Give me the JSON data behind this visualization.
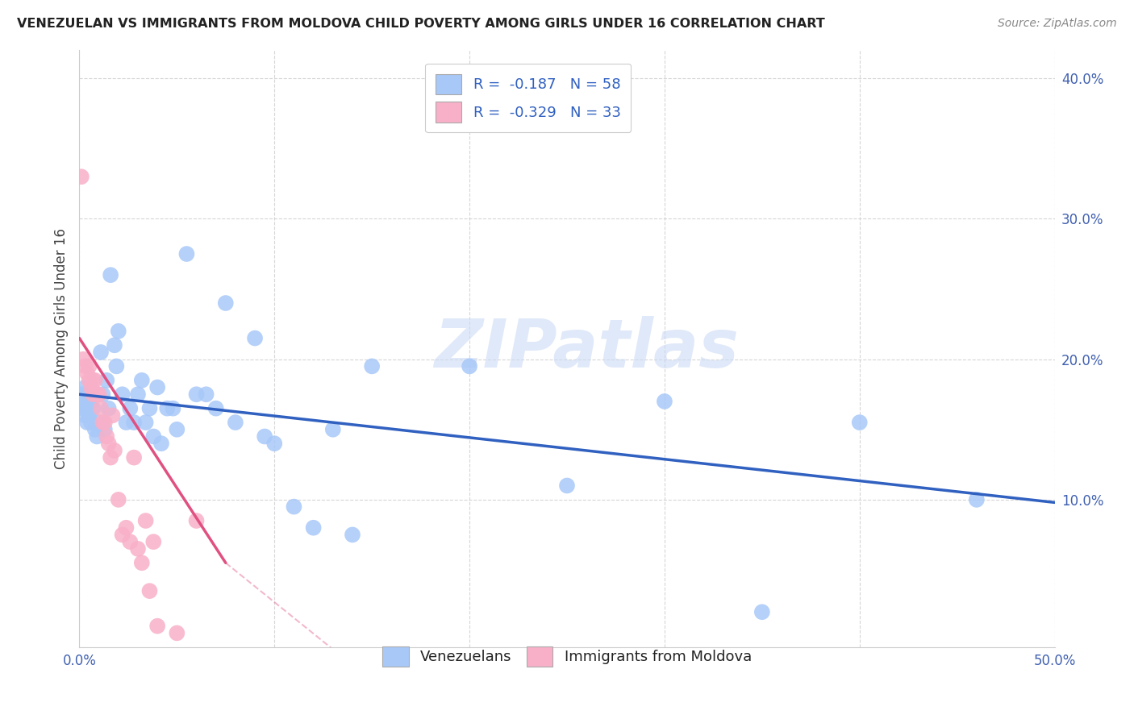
{
  "title": "VENEZUELAN VS IMMIGRANTS FROM MOLDOVA CHILD POVERTY AMONG GIRLS UNDER 16 CORRELATION CHART",
  "source": "Source: ZipAtlas.com",
  "ylabel": "Child Poverty Among Girls Under 16",
  "xlim": [
    0.0,
    0.5
  ],
  "ylim": [
    -0.005,
    0.42
  ],
  "xticks": [
    0.0,
    0.1,
    0.2,
    0.3,
    0.4,
    0.5
  ],
  "yticks": [
    0.1,
    0.2,
    0.3,
    0.4
  ],
  "xtick_labels": [
    "0.0%",
    "",
    "",
    "",
    "",
    "50.0%"
  ],
  "ytick_labels": [
    "10.0%",
    "20.0%",
    "30.0%",
    "40.0%"
  ],
  "legend_labels": [
    "Venezuelans",
    "Immigrants from Moldova"
  ],
  "blue_color": "#a8c8f8",
  "pink_color": "#f8b0c8",
  "blue_line_color": "#3060c0",
  "pink_line_color": "#e05080",
  "legend_R1": "R =  -0.187   N = 58",
  "legend_R2": "R =  -0.329   N = 33",
  "watermark": "ZIPatlas",
  "venezuelan_x": [
    0.001,
    0.002,
    0.002,
    0.003,
    0.003,
    0.004,
    0.004,
    0.005,
    0.005,
    0.006,
    0.006,
    0.007,
    0.008,
    0.009,
    0.01,
    0.011,
    0.012,
    0.013,
    0.014,
    0.015,
    0.016,
    0.018,
    0.019,
    0.02,
    0.022,
    0.024,
    0.026,
    0.028,
    0.03,
    0.032,
    0.034,
    0.036,
    0.038,
    0.04,
    0.042,
    0.045,
    0.048,
    0.05,
    0.055,
    0.06,
    0.065,
    0.07,
    0.075,
    0.08,
    0.09,
    0.095,
    0.1,
    0.11,
    0.12,
    0.13,
    0.14,
    0.15,
    0.2,
    0.25,
    0.3,
    0.35,
    0.4,
    0.46
  ],
  "venezuelan_y": [
    0.175,
    0.17,
    0.165,
    0.18,
    0.16,
    0.165,
    0.155,
    0.175,
    0.16,
    0.17,
    0.155,
    0.165,
    0.15,
    0.145,
    0.155,
    0.205,
    0.175,
    0.15,
    0.185,
    0.165,
    0.26,
    0.21,
    0.195,
    0.22,
    0.175,
    0.155,
    0.165,
    0.155,
    0.175,
    0.185,
    0.155,
    0.165,
    0.145,
    0.18,
    0.14,
    0.165,
    0.165,
    0.15,
    0.275,
    0.175,
    0.175,
    0.165,
    0.24,
    0.155,
    0.215,
    0.145,
    0.14,
    0.095,
    0.08,
    0.15,
    0.075,
    0.195,
    0.195,
    0.11,
    0.17,
    0.02,
    0.155,
    0.1
  ],
  "moldova_x": [
    0.001,
    0.002,
    0.003,
    0.004,
    0.005,
    0.005,
    0.006,
    0.007,
    0.007,
    0.008,
    0.009,
    0.01,
    0.011,
    0.012,
    0.013,
    0.014,
    0.015,
    0.016,
    0.017,
    0.018,
    0.02,
    0.022,
    0.024,
    0.026,
    0.028,
    0.03,
    0.032,
    0.034,
    0.036,
    0.038,
    0.04,
    0.05,
    0.06
  ],
  "moldova_y": [
    0.33,
    0.2,
    0.195,
    0.19,
    0.185,
    0.195,
    0.18,
    0.185,
    0.175,
    0.185,
    0.175,
    0.175,
    0.165,
    0.155,
    0.155,
    0.145,
    0.14,
    0.13,
    0.16,
    0.135,
    0.1,
    0.075,
    0.08,
    0.07,
    0.13,
    0.065,
    0.055,
    0.085,
    0.035,
    0.07,
    0.01,
    0.005,
    0.085
  ],
  "ven_line_x": [
    0.0,
    0.5
  ],
  "ven_line_y": [
    0.175,
    0.098
  ],
  "mol_line_x": [
    0.0,
    0.075
  ],
  "mol_line_y": [
    0.215,
    0.055
  ]
}
